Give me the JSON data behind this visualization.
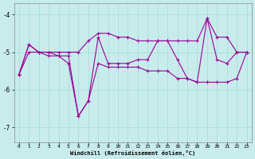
{
  "xlabel": "Windchill (Refroidissement éolien,°C)",
  "background_color": "#c8ecec",
  "line_color": "#990099",
  "x_values": [
    0,
    1,
    2,
    3,
    4,
    5,
    6,
    7,
    8,
    9,
    10,
    11,
    12,
    13,
    14,
    15,
    16,
    17,
    18,
    19,
    20,
    21,
    22,
    23
  ],
  "y_main": [
    -5.6,
    -4.8,
    -5.0,
    -5.0,
    -5.1,
    -5.1,
    -6.7,
    -6.3,
    -4.6,
    -5.3,
    -5.3,
    -5.3,
    -5.2,
    -5.2,
    -4.7,
    -4.7,
    -5.2,
    -5.7,
    -5.8,
    -4.1,
    -5.2,
    -5.3,
    -5.0,
    -5.0
  ],
  "y_upper": [
    -5.6,
    -4.8,
    -5.0,
    -5.0,
    -5.0,
    -5.0,
    -5.0,
    -4.7,
    -4.5,
    -4.5,
    -4.6,
    -4.6,
    -4.7,
    -4.7,
    -4.7,
    -4.7,
    -4.7,
    -4.7,
    -4.7,
    -4.1,
    -4.6,
    -4.6,
    -5.0,
    -5.0
  ],
  "y_lower": [
    -5.6,
    -5.0,
    -5.0,
    -5.1,
    -5.1,
    -5.3,
    -6.7,
    -6.3,
    -5.3,
    -5.4,
    -5.4,
    -5.4,
    -5.4,
    -5.5,
    -5.5,
    -5.5,
    -5.7,
    -5.7,
    -5.8,
    -5.8,
    -5.8,
    -5.8,
    -5.7,
    -5.0
  ],
  "ylim": [
    -7.4,
    -3.7
  ],
  "yticks": [
    -7,
    -6,
    -5,
    -4
  ],
  "xlim": [
    -0.5,
    23.5
  ],
  "xticks": [
    0,
    1,
    2,
    3,
    4,
    5,
    6,
    7,
    8,
    9,
    10,
    11,
    12,
    13,
    14,
    15,
    16,
    17,
    18,
    19,
    20,
    21,
    22,
    23
  ],
  "grid_color": "#aadddd",
  "spine_color": "#888888"
}
